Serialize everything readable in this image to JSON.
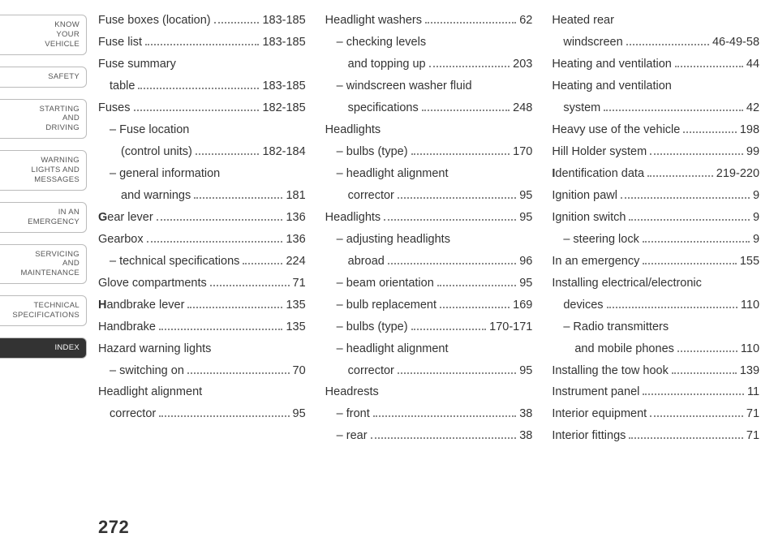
{
  "page_number": "272",
  "sidebar": {
    "tabs": [
      {
        "lines": [
          "KNOW",
          "YOUR",
          "VEHICLE"
        ],
        "active": false
      },
      {
        "lines": [
          "SAFETY"
        ],
        "active": false
      },
      {
        "lines": [
          "STARTING",
          "AND",
          "DRIVING"
        ],
        "active": false
      },
      {
        "lines": [
          "WARNING",
          "LIGHTS AND",
          "MESSAGES"
        ],
        "active": false
      },
      {
        "lines": [
          "IN AN",
          "EMERGENCY"
        ],
        "active": false
      },
      {
        "lines": [
          "SERVICING",
          "AND",
          "MAINTENANCE"
        ],
        "active": false
      },
      {
        "lines": [
          "TECHNICAL",
          "SPECIFICATIONS"
        ],
        "active": false
      },
      {
        "lines": [
          "INDEX"
        ],
        "active": true
      }
    ]
  },
  "columns": [
    [
      {
        "label": "Fuse boxes (location)",
        "page": "183-185",
        "indent": 0
      },
      {
        "label": "Fuse list",
        "page": "183-185",
        "indent": 0
      },
      {
        "label": "Fuse summary",
        "page": "",
        "indent": 0,
        "noleader": true
      },
      {
        "label": "table",
        "page": "183-185",
        "indent": 1
      },
      {
        "label": "Fuses",
        "page": "182-185",
        "indent": 0
      },
      {
        "label": "– Fuse location",
        "page": "",
        "indent": 1,
        "noleader": true
      },
      {
        "label": "(control units)",
        "page": "182-184",
        "indent": 2
      },
      {
        "label": "– general information",
        "page": "",
        "indent": 1,
        "noleader": true
      },
      {
        "label": "and warnings",
        "page": "181",
        "indent": 2
      },
      {
        "label": "Gear lever",
        "page": "136",
        "indent": 0,
        "boldchar": "G",
        "rest": "ear lever"
      },
      {
        "label": "Gearbox",
        "page": "136",
        "indent": 0
      },
      {
        "label": "– technical specifications",
        "page": "224",
        "indent": 1
      },
      {
        "label": "Glove compartments",
        "page": "71",
        "indent": 0
      },
      {
        "label": "Handbrake lever",
        "page": "135",
        "indent": 0,
        "boldchar": "H",
        "rest": "andbrake lever"
      },
      {
        "label": "Handbrake",
        "page": "135",
        "indent": 0
      },
      {
        "label": "Hazard warning lights",
        "page": "",
        "indent": 0,
        "noleader": true
      },
      {
        "label": "– switching on",
        "page": "70",
        "indent": 1
      },
      {
        "label": "Headlight alignment",
        "page": "",
        "indent": 0,
        "noleader": true
      },
      {
        "label": "corrector",
        "page": "95",
        "indent": 1
      }
    ],
    [
      {
        "label": "Headlight washers",
        "page": "62",
        "indent": 0
      },
      {
        "label": "– checking levels",
        "page": "",
        "indent": 1,
        "noleader": true
      },
      {
        "label": "and topping up",
        "page": "203",
        "indent": 2
      },
      {
        "label": "– windscreen washer fluid",
        "page": "",
        "indent": 1,
        "noleader": true
      },
      {
        "label": "specifications",
        "page": "248",
        "indent": 2
      },
      {
        "label": "Headlights",
        "page": "",
        "indent": 0,
        "noleader": true
      },
      {
        "label": "– bulbs (type)",
        "page": "170",
        "indent": 1
      },
      {
        "label": "– headlight alignment",
        "page": "",
        "indent": 1,
        "noleader": true
      },
      {
        "label": "corrector",
        "page": "95",
        "indent": 2
      },
      {
        "label": "Headlights",
        "page": "95",
        "indent": 0
      },
      {
        "label": "– adjusting headlights",
        "page": "",
        "indent": 1,
        "noleader": true
      },
      {
        "label": "abroad",
        "page": "96",
        "indent": 2
      },
      {
        "label": "– beam orientation",
        "page": "95",
        "indent": 1
      },
      {
        "label": "– bulb replacement",
        "page": "169",
        "indent": 1
      },
      {
        "label": "– bulbs (type)",
        "page": "170-171",
        "indent": 1
      },
      {
        "label": "– headlight alignment",
        "page": "",
        "indent": 1,
        "noleader": true
      },
      {
        "label": "corrector",
        "page": "95",
        "indent": 2
      },
      {
        "label": "Headrests",
        "page": "",
        "indent": 0,
        "noleader": true
      },
      {
        "label": "– front",
        "page": "38",
        "indent": 1
      },
      {
        "label": "– rear",
        "page": "38",
        "indent": 1
      }
    ],
    [
      {
        "label": "Heated rear",
        "page": "",
        "indent": 0,
        "noleader": true
      },
      {
        "label": "windscreen",
        "page": "46-49-58",
        "indent": 1
      },
      {
        "label": "Heating and ventilation",
        "page": "44",
        "indent": 0
      },
      {
        "label": "Heating and ventilation",
        "page": "",
        "indent": 0,
        "noleader": true
      },
      {
        "label": "system",
        "page": "42",
        "indent": 1
      },
      {
        "label": "Heavy use of the vehicle",
        "page": "198",
        "indent": 0
      },
      {
        "label": "Hill Holder system",
        "page": "99",
        "indent": 0
      },
      {
        "label": "Identification data",
        "page": "219-220",
        "indent": 0,
        "boldchar": "I",
        "rest": "dentification data"
      },
      {
        "label": "Ignition pawl",
        "page": "9",
        "indent": 0
      },
      {
        "label": "Ignition switch",
        "page": "9",
        "indent": 0
      },
      {
        "label": "– steering lock",
        "page": "9",
        "indent": 1
      },
      {
        "label": "In an emergency",
        "page": "155",
        "indent": 0
      },
      {
        "label": "Installing electrical/electronic",
        "page": "",
        "indent": 0,
        "noleader": true
      },
      {
        "label": "devices",
        "page": "110",
        "indent": 1
      },
      {
        "label": "– Radio transmitters",
        "page": "",
        "indent": 1,
        "noleader": true
      },
      {
        "label": "and mobile phones",
        "page": "110",
        "indent": 2
      },
      {
        "label": "Installing the tow hook",
        "page": "139",
        "indent": 0
      },
      {
        "label": "Instrument panel",
        "page": "11",
        "indent": 0
      },
      {
        "label": "Interior equipment",
        "page": "71",
        "indent": 0
      },
      {
        "label": "Interior fittings",
        "page": "71",
        "indent": 0
      }
    ]
  ]
}
